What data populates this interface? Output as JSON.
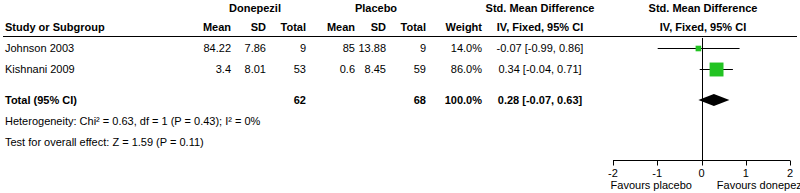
{
  "chart_data": {
    "type": "forest",
    "group_headers": [
      "Donepezil",
      "Placebo",
      "Std. Mean Difference",
      "Std. Mean Difference"
    ],
    "columns": [
      "Study or Subgroup",
      "Mean",
      "SD",
      "Total",
      "Mean",
      "SD",
      "Total",
      "Weight",
      "IV, Fixed, 95% CI",
      "IV, Fixed, 95% CI"
    ],
    "studies": [
      {
        "name": "Johnson 2003",
        "treatment": {
          "mean": 84.22,
          "sd": 7.86,
          "total": 9
        },
        "control": {
          "mean": 85,
          "sd": 13.88,
          "total": 9
        },
        "weight": 14.0,
        "weight_label": "14.0%",
        "smd": -0.07,
        "ci_low": -0.99,
        "ci_high": 0.86,
        "effect_label": "-0.07 [-0.99, 0.86]"
      },
      {
        "name": "Kishnani 2009",
        "treatment": {
          "mean": 3.4,
          "sd": 8.01,
          "total": 53
        },
        "control": {
          "mean": 0.6,
          "sd": 8.45,
          "total": 59
        },
        "weight": 86.0,
        "weight_label": "86.0%",
        "smd": 0.34,
        "ci_low": -0.04,
        "ci_high": 0.71,
        "effect_label": "0.34 [-0.04, 0.71]"
      }
    ],
    "total": {
      "name": "Total (95% CI)",
      "treatment_total": 62,
      "control_total": 68,
      "weight_label": "100.0%",
      "smd": 0.28,
      "ci_low": -0.07,
      "ci_high": 0.63,
      "effect_label": "0.28 [-0.07, 0.63]"
    },
    "heterogeneity": "Heterogeneity: Chi² = 0.63, df = 1 (P = 0.43); I² = 0%",
    "overall_effect": "Test for overall effect: Z = 1.59 (P = 0.11)",
    "xlim": [
      -2,
      2
    ],
    "xticks": [
      -2,
      -1,
      0,
      1,
      2
    ],
    "x_labels": [
      "Favours placebo",
      "Favours donepezil"
    ],
    "color": "#22c322"
  }
}
